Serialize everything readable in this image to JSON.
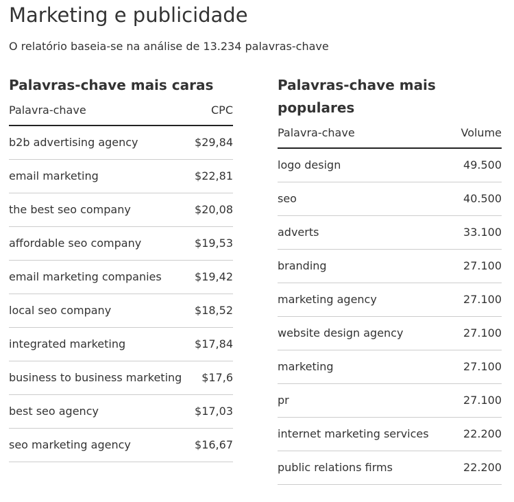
{
  "header": {
    "title": "Marketing e publicidade",
    "subtitle": "O relatório baseia-se na análise de 13.234 palavras-chave"
  },
  "tables": [
    {
      "title": "Palavras-chave mais caras",
      "columns": [
        "Palavra-chave",
        "CPC"
      ],
      "rows": [
        [
          "b2b advertising agency",
          "$29,84"
        ],
        [
          "email marketing",
          "$22,81"
        ],
        [
          "the best seo company",
          "$20,08"
        ],
        [
          "affordable seo company",
          "$19,53"
        ],
        [
          "email marketing companies",
          "$19,42"
        ],
        [
          "local seo company",
          "$18,52"
        ],
        [
          "integrated marketing",
          "$17,84"
        ],
        [
          "business to business marketing",
          "$17,6"
        ],
        [
          "best seo agency",
          "$17,03"
        ],
        [
          "seo marketing agency",
          "$16,67"
        ]
      ]
    },
    {
      "title": "Palavras-chave mais populares",
      "columns": [
        "Palavra-chave",
        "Volume"
      ],
      "rows": [
        [
          "logo design",
          "49.500"
        ],
        [
          "seo",
          "40.500"
        ],
        [
          "adverts",
          "33.100"
        ],
        [
          "branding",
          "27.100"
        ],
        [
          "marketing agency",
          "27.100"
        ],
        [
          "website design agency",
          "27.100"
        ],
        [
          "marketing",
          "27.100"
        ],
        [
          "pr",
          "27.100"
        ],
        [
          "internet marketing services",
          "22.200"
        ],
        [
          "public relations firms",
          "22.200"
        ]
      ]
    }
  ]
}
